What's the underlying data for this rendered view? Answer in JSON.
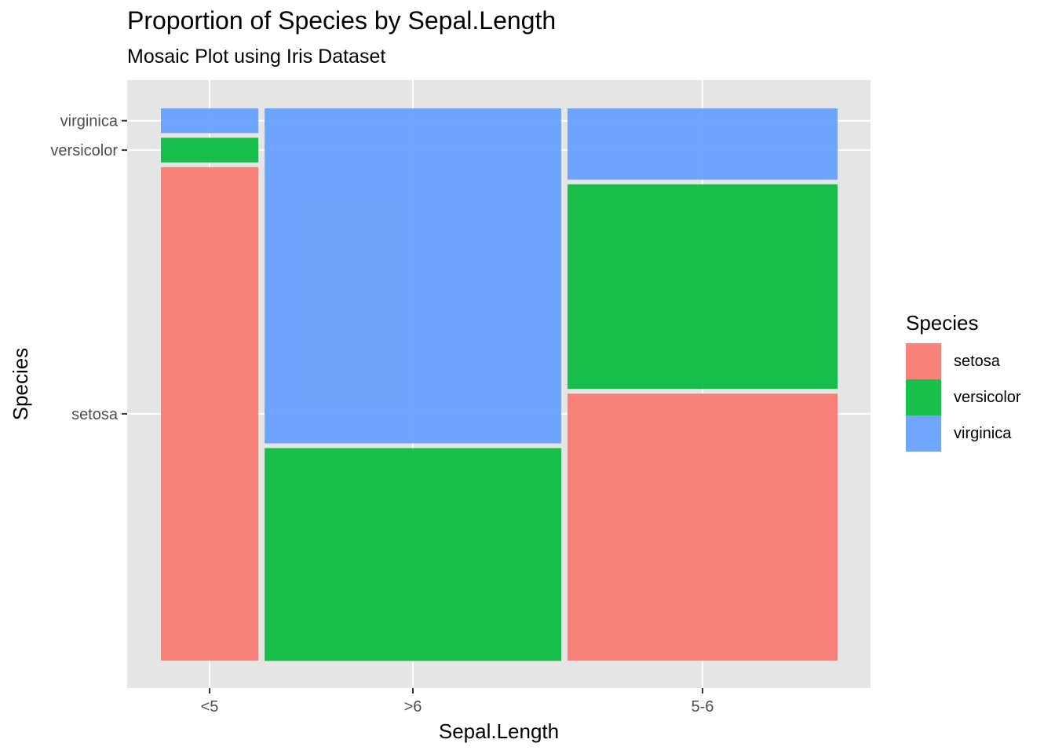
{
  "chart_data": {
    "type": "mosaic",
    "title": "Proportion of Species by Sepal.Length",
    "subtitle": "Mosaic Plot using Iris Dataset",
    "xlabel": "Sepal.Length",
    "ylabel": "Species",
    "categories": [
      "<5",
      ">6",
      "5-6"
    ],
    "category_widths": [
      22,
      67,
      61
    ],
    "series": [
      {
        "name": "setosa",
        "color": "#F8766D",
        "values": [
          20,
          0,
          30
        ]
      },
      {
        "name": "versicolor",
        "color": "#00BA38",
        "values": [
          1,
          26,
          23
        ]
      },
      {
        "name": "virginica",
        "color": "#619CFF",
        "values": [
          1,
          41,
          8
        ]
      }
    ],
    "y_tick_labels": [
      "setosa",
      "versicolor",
      "virginica"
    ],
    "legend": {
      "title": "Species",
      "position": "right"
    }
  }
}
